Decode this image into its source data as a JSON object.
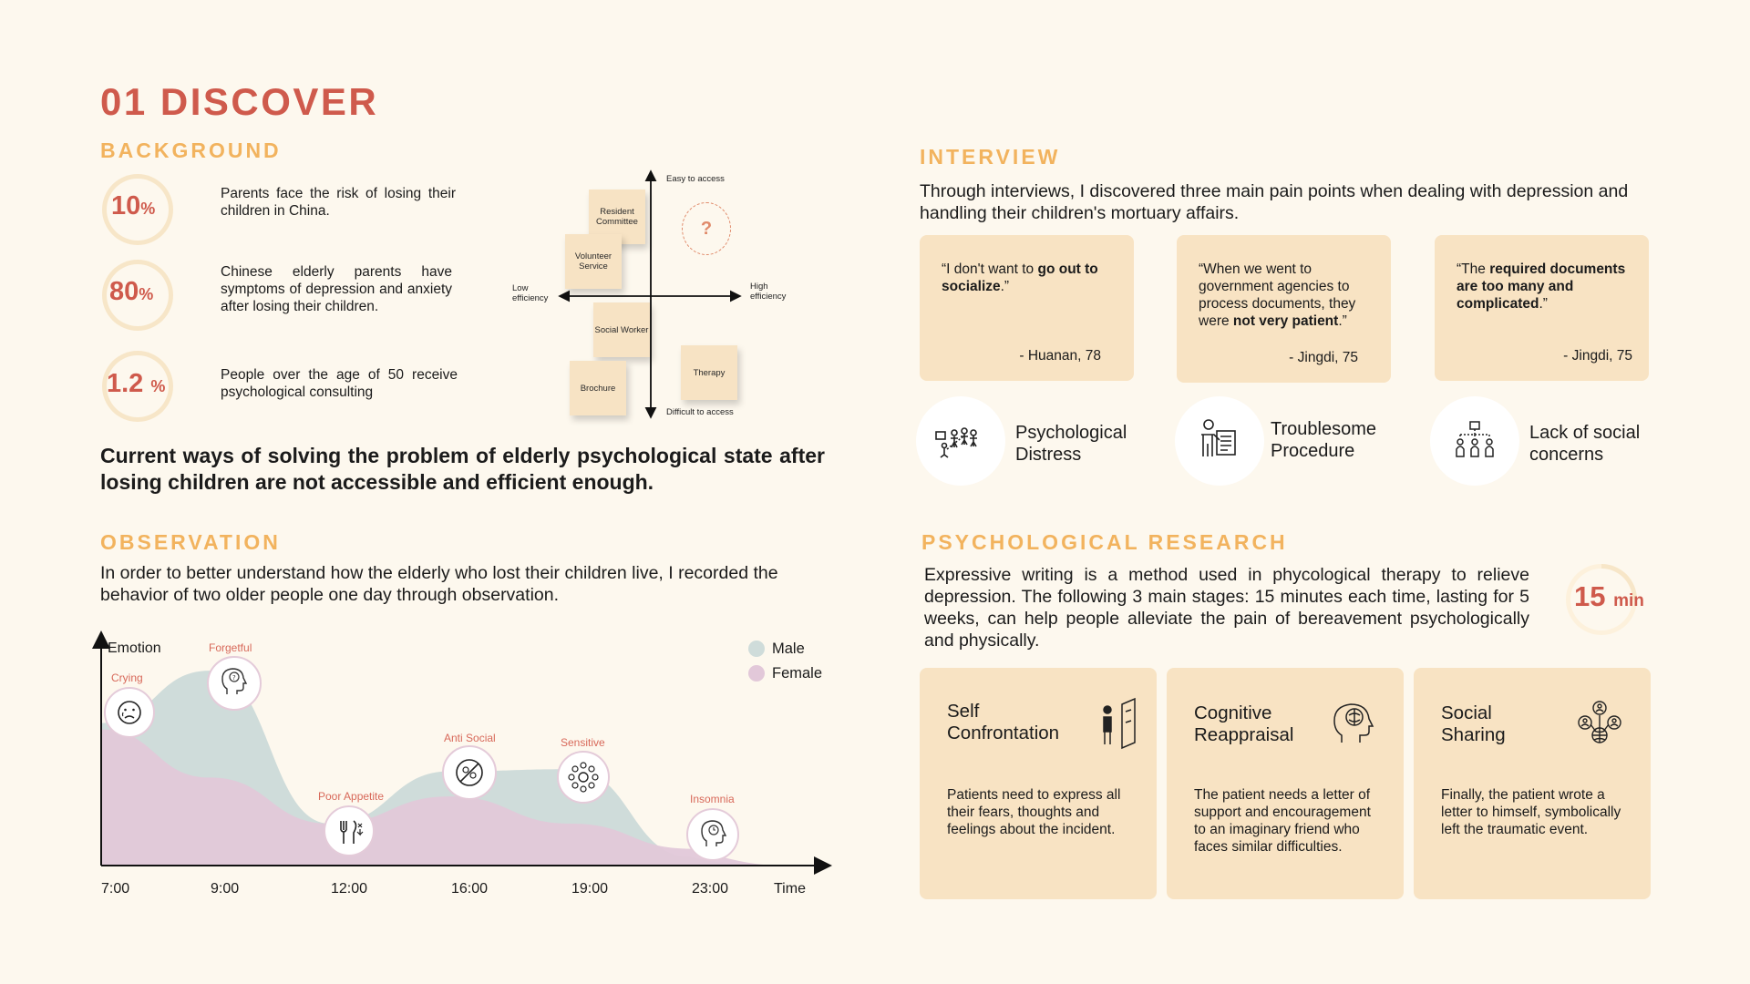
{
  "header": {
    "title": "01 DISCOVER"
  },
  "background": {
    "title": "BACKGROUND",
    "stats": [
      {
        "value": "10",
        "unit": "%",
        "fraction": 0.1,
        "text": "Parents face the risk of losing their children in China."
      },
      {
        "value": "80",
        "unit": "%",
        "fraction": 0.8,
        "text": "Chinese elderly parents have symptoms of depression and anxiety after losing their children."
      },
      {
        "value": "1.2",
        "unit": "%",
        "fraction": 0.012,
        "text": "People over the age of 50 receive psychological consulting"
      }
    ],
    "matrix": {
      "top": "Easy to access",
      "bottom": "Difficult to access",
      "left": "Low\nefficiency",
      "right": "High\nefficiency",
      "unknown": "?",
      "notes": [
        "Resident Committee",
        "Volunteer Service",
        "Social Worker",
        "Brochure",
        "Therapy"
      ]
    },
    "statement": "Current ways of solving the problem of elderly psychological state after losing children are not accessible and efficient enough."
  },
  "observation": {
    "title": "OBSERVATION",
    "text": "In order to better understand how the elderly who lost their children live, I recorded the behavior of two older people one day through observation."
  },
  "chart_data": {
    "type": "area",
    "ylabel": "Emotion",
    "xlabel": "Time",
    "categories": [
      "7:00",
      "9:00",
      "12:00",
      "16:00",
      "19:00",
      "23:00"
    ],
    "series": [
      {
        "name": "Male",
        "color": "#cfdcda",
        "values": [
          0.68,
          0.93,
          0.2,
          0.45,
          0.46,
          0.04
        ]
      },
      {
        "name": "Female",
        "color": "#e2c8d9",
        "values": [
          0.65,
          0.42,
          0.2,
          0.33,
          0.2,
          0.08
        ]
      }
    ],
    "annotations": [
      {
        "label": "Crying",
        "x": "7:00",
        "icon": "crying-face-icon"
      },
      {
        "label": "Forgetful",
        "x": "9:00",
        "icon": "forgetful-head-icon"
      },
      {
        "label": "Poor Appetite",
        "x": "12:00",
        "icon": "utensils-icon"
      },
      {
        "label": "Anti Social",
        "x": "16:00",
        "icon": "anti-social-icon"
      },
      {
        "label": "Sensitive",
        "x": "19:00",
        "icon": "sensitive-icon"
      },
      {
        "label": "Insomnia",
        "x": "23:00",
        "icon": "insomnia-head-icon"
      }
    ],
    "legend_position": "top-right"
  },
  "interview": {
    "title": "INTERVIEW",
    "intro": "Through interviews, I discovered three main pain points when dealing with depression and handling their children's mortuary affairs.",
    "quotes": [
      {
        "pre": "“I don't want to ",
        "bold": "go out to socialize",
        "mid": ".”",
        "bold2": "",
        "post": "",
        "author": "- Huanan, 78"
      },
      {
        "pre": "“When we went to government agencies to process documents, they were ",
        "bold": "not very patient",
        "mid": ".”",
        "bold2": "",
        "post": "",
        "author": "- Jingdi, 75"
      },
      {
        "pre": "“The ",
        "bold": "required documents are too many and complicated",
        "mid": ".”",
        "bold2": "",
        "post": "",
        "author": "- Jingdi, 75"
      }
    ],
    "pains": [
      {
        "label": "Psychological\nDistress",
        "icon": "distress-people-icon"
      },
      {
        "label": "Troublesome\nProcedure",
        "icon": "procedure-document-icon"
      },
      {
        "label": "Lack of social\nconcerns",
        "icon": "social-network-icon"
      }
    ]
  },
  "research": {
    "title": "PSYCHOLOGICAL RESEARCH",
    "text": "Expressive writing is a method used in phycological therapy to relieve depression. The following 3 main stages: 15 minutes each time, lasting for 5 weeks, can help people alleviate the pain of bereavement psychologically and physically.",
    "timer": {
      "value": "15",
      "unit": "min",
      "fraction": 0.25
    },
    "stages": [
      {
        "title": "Self\nConfrontation",
        "desc": "Patients need to express all their fears, thoughts and feelings about the incident.",
        "icon": "mirror-person-icon"
      },
      {
        "title": "Cognitive\nReappraisal",
        "desc": "The patient needs a letter of support and encouragement to an imaginary friend who faces similar difficulties.",
        "icon": "brain-head-icon"
      },
      {
        "title": "Social\nSharing",
        "desc": "Finally, the patient wrote a letter to himself, symbolically left the traumatic event.",
        "icon": "globe-people-icon"
      }
    ]
  }
}
